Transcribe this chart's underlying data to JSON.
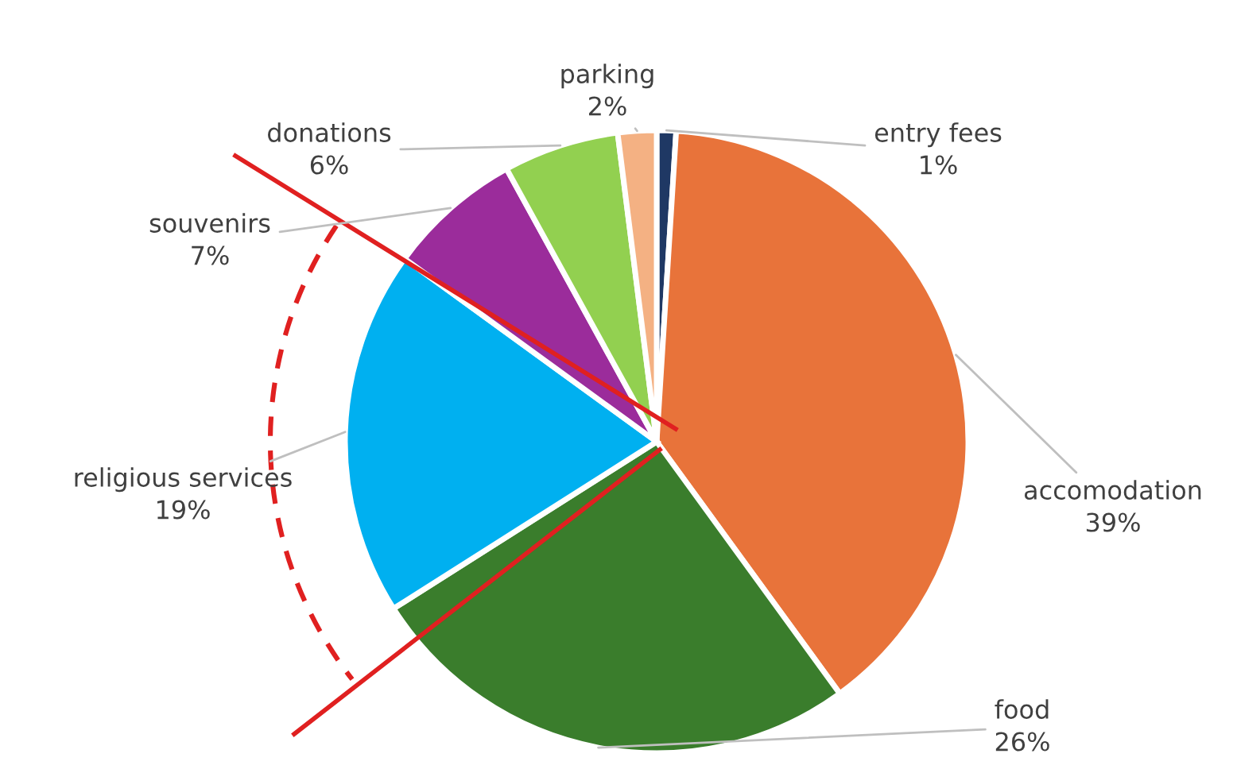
{
  "chart_data": {
    "type": "pie",
    "categories": [
      "entry fees",
      "accomodation",
      "food",
      "religious services",
      "souvenirs",
      "donations",
      "parking"
    ],
    "values": [
      1,
      39,
      26,
      19,
      7,
      6,
      2
    ],
    "value_labels": [
      "1%",
      "39%",
      "26%",
      "19%",
      "7%",
      "6%",
      "2%"
    ],
    "colors": [
      "#1f3864",
      "#e8733a",
      "#3a7d2c",
      "#00b0f0",
      "#9b2c9b",
      "#92d050",
      "#f4b183"
    ]
  }
}
